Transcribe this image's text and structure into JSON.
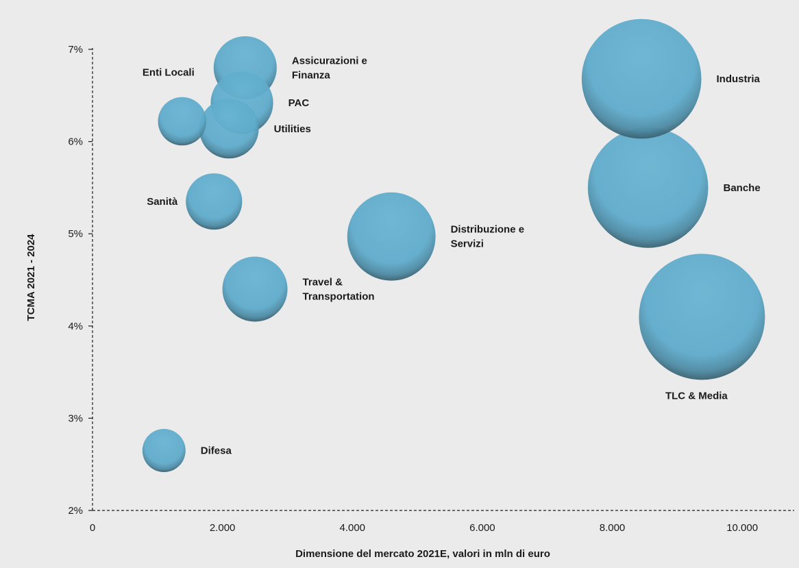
{
  "chart_data": {
    "type": "bubble",
    "title": "",
    "xlabel": "Dimensione del mercato 2021E, valori in mln di euro",
    "ylabel": "TCMA 2021 - 2024",
    "xlim": [
      0,
      10800
    ],
    "ylim": [
      2,
      7
    ],
    "x_ticks": [
      "0",
      "2.000",
      "4.000",
      "6.000",
      "8.000",
      "10.000"
    ],
    "x_tick_values": [
      0,
      2000,
      4000,
      6000,
      8000,
      10000
    ],
    "y_ticks": [
      "2%",
      "3%",
      "4%",
      "5%",
      "6%",
      "7%"
    ],
    "y_tick_values": [
      2,
      3,
      4,
      5,
      6,
      7
    ],
    "grid": false,
    "bubble_color": "#5aa8c9",
    "points": [
      {
        "label": "Assicurazioni e Finanza",
        "lines": [
          "Assicurazioni e",
          "Finanza"
        ],
        "x": 2350,
        "y": 6.8,
        "size": 2350,
        "label_side": "right"
      },
      {
        "label": "Enti Locali",
        "lines": [
          "Enti Locali"
        ],
        "x": 1380,
        "y": 6.22,
        "size": 1380,
        "label_side": "above"
      },
      {
        "label": "PAC",
        "lines": [
          "PAC"
        ],
        "x": 2300,
        "y": 6.42,
        "size": 2300,
        "label_side": "right"
      },
      {
        "label": "Utilities",
        "lines": [
          "Utilities"
        ],
        "x": 2100,
        "y": 6.14,
        "size": 2100,
        "label_side": "right"
      },
      {
        "label": "Sanità",
        "lines": [
          "Sanità"
        ],
        "x": 1870,
        "y": 5.35,
        "size": 1870,
        "label_side": "left"
      },
      {
        "label": "Distribuzione e Servizi",
        "lines": [
          "Distribuzione e",
          "Servizi"
        ],
        "x": 4600,
        "y": 4.97,
        "size": 4600,
        "label_side": "right"
      },
      {
        "label": "Travel & Transportation",
        "lines": [
          "Travel &",
          "Transportation"
        ],
        "x": 2500,
        "y": 4.4,
        "size": 2500,
        "label_side": "right"
      },
      {
        "label": "Industria",
        "lines": [
          "Industria"
        ],
        "x": 8450,
        "y": 6.68,
        "size": 8450,
        "label_side": "right"
      },
      {
        "label": "Banche",
        "lines": [
          "Banche"
        ],
        "x": 8550,
        "y": 5.5,
        "size": 8550,
        "label_side": "right"
      },
      {
        "label": "TLC & Media",
        "lines": [
          "TLC & Media"
        ],
        "x": 9380,
        "y": 4.1,
        "size": 9380,
        "label_side": "below"
      },
      {
        "label": "Difesa",
        "lines": [
          "Difesa"
        ],
        "x": 1100,
        "y": 2.65,
        "size": 1100,
        "label_side": "right"
      }
    ]
  }
}
